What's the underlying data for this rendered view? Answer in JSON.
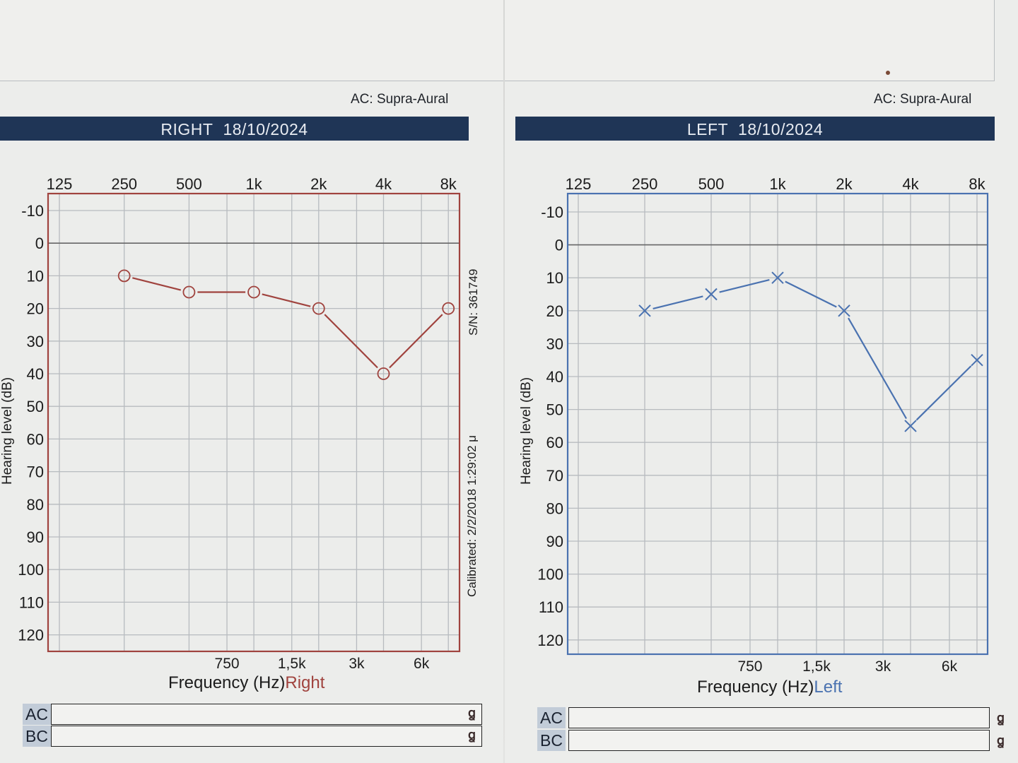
{
  "header": {
    "ac_label": "AC: Supra-Aural"
  },
  "panels": {
    "right": {
      "title_side": "RIGHT",
      "title_date": "18/10/2024",
      "ac_label": "AC: Supra-Aural",
      "freq_title": "Frequency (Hz)",
      "ear_word": "Right",
      "y_axis_title": "Hearing level (dB)",
      "serial": "S/N: 361749",
      "calibrated": "Calibrated: 2/2/2018 1:29:02 μ",
      "summary": {
        "ac": "AC",
        "bc": "BC"
      }
    },
    "left": {
      "title_side": "LEFT",
      "title_date": "18/10/2024",
      "ac_label": "AC: Supra-Aural",
      "freq_title": "Frequency (Hz)",
      "ear_word": "Left",
      "y_axis_title": "Hearing level (dB)",
      "summary": {
        "ac": "AC",
        "bc": "BC"
      }
    }
  },
  "colors": {
    "right": "#a0433e",
    "left": "#4a72b0",
    "title_bar": "#1f3556"
  },
  "chart_data": [
    {
      "type": "line",
      "title": "RIGHT 18/10/2024",
      "xlabel": "Frequency (Hz) Right",
      "ylabel": "Hearing level (dB)",
      "x_scale": "log2",
      "x_ticks_top": [
        "125",
        "250",
        "500",
        "1k",
        "2k",
        "4k",
        "8k"
      ],
      "x_ticks_bottom": [
        "750",
        "1,5k",
        "3k",
        "6k"
      ],
      "y_ticks": [
        -10,
        0,
        10,
        20,
        30,
        40,
        50,
        60,
        70,
        80,
        90,
        100,
        110,
        120
      ],
      "ylim": [
        -10,
        125
      ],
      "y_inverted": true,
      "grid": true,
      "marker": "circle",
      "series": [
        {
          "x": [
            250,
            500,
            1000,
            2000,
            4000,
            8000
          ],
          "y": [
            10,
            15,
            15,
            20,
            40,
            20
          ]
        }
      ]
    },
    {
      "type": "line",
      "title": "LEFT 18/10/2024",
      "xlabel": "Frequency (Hz) Left",
      "ylabel": "Hearing level (dB)",
      "x_scale": "log2",
      "x_ticks_top": [
        "125",
        "250",
        "500",
        "1k",
        "2k",
        "4k",
        "8k"
      ],
      "x_ticks_bottom": [
        "750",
        "1,5k",
        "3k",
        "6k"
      ],
      "y_ticks": [
        -10,
        0,
        10,
        20,
        30,
        40,
        50,
        60,
        70,
        80,
        90,
        100,
        110,
        120
      ],
      "ylim": [
        -10,
        125
      ],
      "y_inverted": true,
      "grid": true,
      "marker": "cross",
      "series": [
        {
          "x": [
            250,
            500,
            1000,
            2000,
            4000,
            8000
          ],
          "y": [
            20,
            15,
            10,
            20,
            55,
            35
          ]
        }
      ]
    }
  ]
}
